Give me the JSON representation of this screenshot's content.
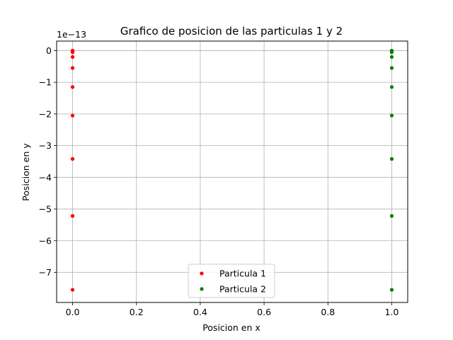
{
  "chart_data": {
    "type": "scatter",
    "title": "Grafico de posicion de las particulas 1 y 2",
    "xlabel": "Posicion en x",
    "ylabel": "Posicion en y",
    "offset_text": "1e−13",
    "xlim": [
      -0.05,
      1.05
    ],
    "ylim": [
      -7.95,
      0.3
    ],
    "y_scale_factor": 1e-13,
    "grid": true,
    "legend_position": "lower center",
    "xticks": [
      0.0,
      0.2,
      0.4,
      0.6,
      0.8,
      1.0
    ],
    "xtick_labels": [
      "0.0",
      "0.2",
      "0.4",
      "0.6",
      "0.8",
      "1.0"
    ],
    "yticks": [
      0,
      -1,
      -2,
      -3,
      -4,
      -5,
      -6,
      -7
    ],
    "ytick_labels": [
      "0",
      "−1",
      "−2",
      "−3",
      "−4",
      "−5",
      "−6",
      "−7"
    ],
    "series": [
      {
        "name": "Particula 1",
        "color": "#ff0000",
        "marker": "point",
        "x": [
          0,
          0,
          0,
          0,
          0,
          0,
          0,
          0,
          0,
          0,
          0
        ],
        "y": [
          0.0,
          -0.01,
          -0.05,
          -0.2,
          -0.55,
          -1.15,
          -2.05,
          -3.42,
          -5.22,
          -7.55,
          -0.02
        ]
      },
      {
        "name": "Particula 2",
        "color": "#008000",
        "marker": "point",
        "x": [
          1,
          1,
          1,
          1,
          1,
          1,
          1,
          1,
          1,
          1,
          1
        ],
        "y": [
          0.0,
          -0.01,
          -0.05,
          -0.2,
          -0.55,
          -1.15,
          -2.05,
          -3.42,
          -5.22,
          -7.55,
          -0.02
        ]
      }
    ]
  }
}
